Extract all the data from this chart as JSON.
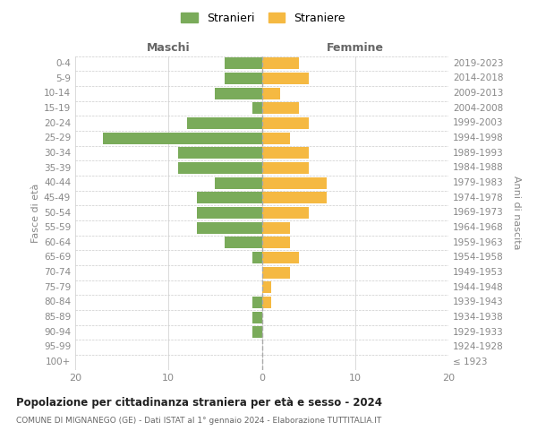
{
  "age_groups": [
    "100+",
    "95-99",
    "90-94",
    "85-89",
    "80-84",
    "75-79",
    "70-74",
    "65-69",
    "60-64",
    "55-59",
    "50-54",
    "45-49",
    "40-44",
    "35-39",
    "30-34",
    "25-29",
    "20-24",
    "15-19",
    "10-14",
    "5-9",
    "0-4"
  ],
  "birth_years": [
    "≤ 1923",
    "1924-1928",
    "1929-1933",
    "1934-1938",
    "1939-1943",
    "1944-1948",
    "1949-1953",
    "1954-1958",
    "1959-1963",
    "1964-1968",
    "1969-1973",
    "1974-1978",
    "1979-1983",
    "1984-1988",
    "1989-1993",
    "1994-1998",
    "1999-2003",
    "2004-2008",
    "2009-2013",
    "2014-2018",
    "2019-2023"
  ],
  "maschi": [
    0,
    0,
    1,
    1,
    1,
    0,
    0,
    1,
    4,
    7,
    7,
    7,
    5,
    9,
    9,
    17,
    8,
    1,
    5,
    4,
    4
  ],
  "femmine": [
    0,
    0,
    0,
    0,
    1,
    1,
    3,
    4,
    3,
    3,
    5,
    7,
    7,
    5,
    5,
    3,
    5,
    4,
    2,
    5,
    4
  ],
  "color_maschi": "#7aab5a",
  "color_femmine": "#f5b942",
  "title": "Popolazione per cittadinanza straniera per età e sesso - 2024",
  "subtitle": "COMUNE DI MIGNANEGO (GE) - Dati ISTAT al 1° gennaio 2024 - Elaborazione TUTTITALIA.IT",
  "label_maschi": "Stranieri",
  "label_femmine": "Straniere",
  "header_left": "Maschi",
  "header_right": "Femmine",
  "ylabel_left": "Fasce di età",
  "ylabel_right": "Anni di nascita",
  "xlim": 20,
  "background_color": "#ffffff",
  "grid_color": "#cccccc",
  "centerline_color": "#aaaaaa"
}
